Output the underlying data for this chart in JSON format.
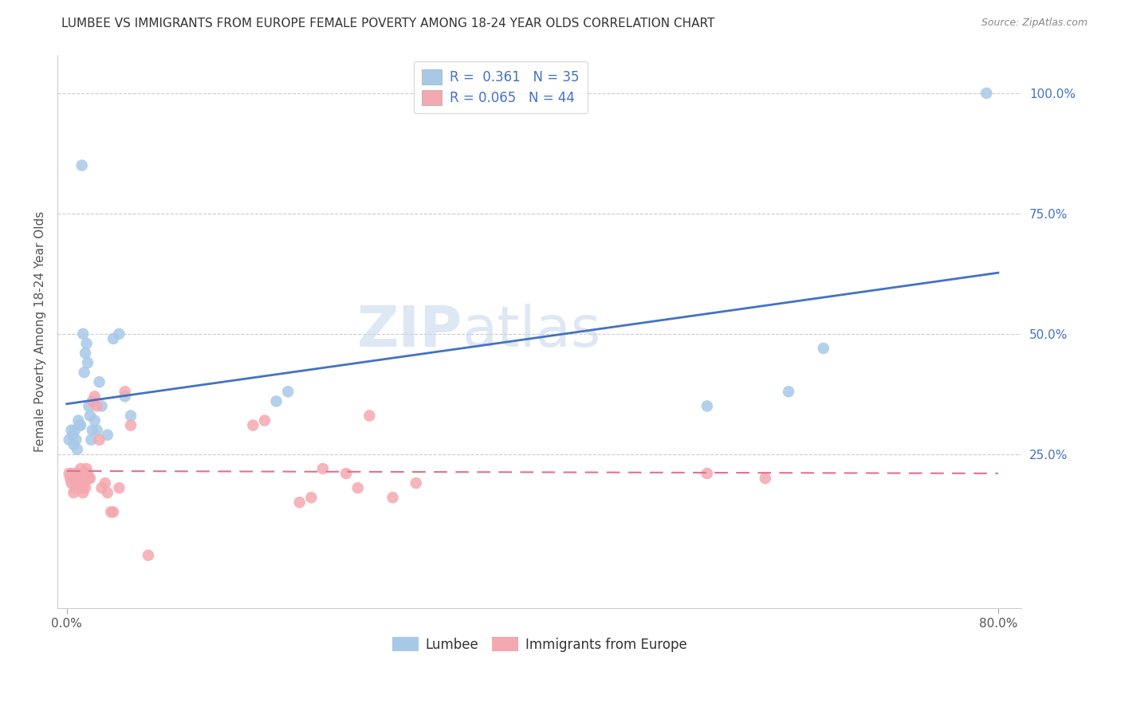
{
  "title": "LUMBEE VS IMMIGRANTS FROM EUROPE FEMALE POVERTY AMONG 18-24 YEAR OLDS CORRELATION CHART",
  "source": "Source: ZipAtlas.com",
  "ylabel": "Female Poverty Among 18-24 Year Olds",
  "y_right_tick_labels": [
    "",
    "25.0%",
    "50.0%",
    "75.0%",
    "100.0%"
  ],
  "xlim": [
    -0.008,
    0.82
  ],
  "ylim": [
    -0.07,
    1.08
  ],
  "lumbee_R": 0.361,
  "lumbee_N": 35,
  "europe_R": 0.065,
  "europe_N": 44,
  "legend_labels": [
    "Lumbee",
    "Immigrants from Europe"
  ],
  "blue_color": "#a8c8e8",
  "pink_color": "#f4a8b0",
  "blue_line_color": "#4472c4",
  "pink_line_color": "#e07090",
  "lumbee_x": [
    0.002,
    0.004,
    0.005,
    0.006,
    0.007,
    0.008,
    0.009,
    0.01,
    0.011,
    0.012,
    0.013,
    0.014,
    0.015,
    0.016,
    0.017,
    0.018,
    0.019,
    0.02,
    0.021,
    0.022,
    0.024,
    0.026,
    0.028,
    0.03,
    0.035,
    0.04,
    0.045,
    0.05,
    0.055,
    0.18,
    0.19,
    0.55,
    0.62,
    0.65,
    0.79
  ],
  "lumbee_y": [
    0.28,
    0.3,
    0.29,
    0.27,
    0.3,
    0.28,
    0.26,
    0.32,
    0.31,
    0.31,
    0.85,
    0.5,
    0.42,
    0.46,
    0.48,
    0.44,
    0.35,
    0.33,
    0.28,
    0.3,
    0.32,
    0.3,
    0.4,
    0.35,
    0.29,
    0.49,
    0.5,
    0.37,
    0.33,
    0.36,
    0.38,
    0.35,
    0.38,
    0.47,
    1.0
  ],
  "europe_x": [
    0.002,
    0.003,
    0.004,
    0.005,
    0.006,
    0.007,
    0.008,
    0.009,
    0.01,
    0.011,
    0.012,
    0.013,
    0.014,
    0.015,
    0.016,
    0.017,
    0.018,
    0.019,
    0.02,
    0.022,
    0.024,
    0.026,
    0.028,
    0.03,
    0.033,
    0.035,
    0.038,
    0.04,
    0.045,
    0.05,
    0.055,
    0.07,
    0.16,
    0.17,
    0.2,
    0.21,
    0.22,
    0.24,
    0.25,
    0.26,
    0.28,
    0.3,
    0.55,
    0.6
  ],
  "europe_y": [
    0.21,
    0.2,
    0.19,
    0.21,
    0.17,
    0.18,
    0.2,
    0.21,
    0.19,
    0.2,
    0.22,
    0.18,
    0.17,
    0.19,
    0.18,
    0.22,
    0.21,
    0.2,
    0.2,
    0.36,
    0.37,
    0.35,
    0.28,
    0.18,
    0.19,
    0.17,
    0.13,
    0.13,
    0.18,
    0.38,
    0.31,
    0.04,
    0.31,
    0.32,
    0.15,
    0.16,
    0.22,
    0.21,
    0.18,
    0.33,
    0.16,
    0.19,
    0.21,
    0.2
  ],
  "watermark_zip": "ZIP",
  "watermark_atlas": "atlas",
  "grid_color": "#cccccc",
  "background_color": "#ffffff"
}
